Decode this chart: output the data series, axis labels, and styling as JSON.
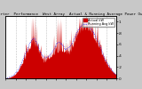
{
  "title": "Solar PV/Inverter  Performance  West Array  Actual & Running Average Power Output",
  "background_color": "#c8c8c8",
  "plot_bg": "#ffffff",
  "grid_color": "#c0c0c0",
  "bar_color": "#cc0000",
  "avg_color": "#0000ff",
  "num_points": 365,
  "yticks": [
    0,
    0.2,
    0.4,
    0.6,
    0.8,
    1.0
  ],
  "ytick_labels": [
    "0",
    ".2",
    ".4",
    ".6",
    ".8",
    "1"
  ],
  "legend_actual": "Actual kW",
  "legend_avg": "Running Avg kW",
  "title_fontsize": 3.0,
  "tick_fontsize": 3.0,
  "legend_fontsize": 2.5
}
